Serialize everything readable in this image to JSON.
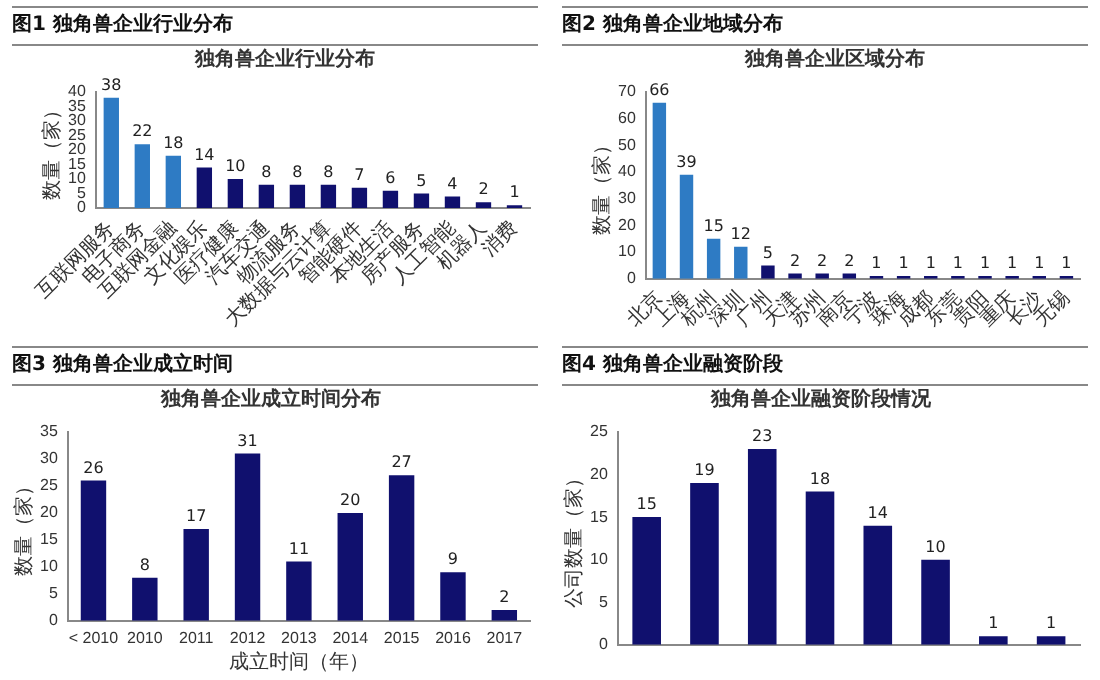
{
  "chart_data": [
    {
      "type": "bar",
      "title": "图1  独角兽企业行业分布",
      "subtitle": "独角兽企业行业分布",
      "ylabel": "数量（家）",
      "categories": [
        "互联网服务",
        "电子商务",
        "互联网金融",
        "文化娱乐",
        "医疗健康",
        "汽车交通",
        "物流服务",
        "大数据与云计算",
        "智能硬件",
        "本地生活",
        "房产服务",
        "人工智能",
        "机器人",
        "消费"
      ],
      "values": [
        38,
        22,
        18,
        14,
        10,
        8,
        8,
        8,
        7,
        6,
        5,
        4,
        2,
        1
      ],
      "colors": [
        "#2e7bc4",
        "#2e7bc4",
        "#2e7bc4",
        "#10106e",
        "#10106e",
        "#10106e",
        "#10106e",
        "#10106e",
        "#10106e",
        "#10106e",
        "#10106e",
        "#10106e",
        "#10106e",
        "#10106e"
      ],
      "ylim": [
        0,
        40
      ],
      "yticks": [
        0,
        5,
        10,
        15,
        20,
        25,
        30,
        35,
        40
      ],
      "data_labels": true,
      "grid": false,
      "legend": false
    },
    {
      "type": "bar",
      "title": "图2  独角兽企业地域分布",
      "subtitle": "独角兽企业区域分布",
      "ylabel": "数量（家）",
      "categories": [
        "北京",
        "上海",
        "杭州",
        "深圳",
        "广州",
        "天津",
        "苏州",
        "南京",
        "宁波",
        "珠海",
        "成都",
        "东莞",
        "贵阳",
        "重庆",
        "长沙",
        "无锡"
      ],
      "values": [
        66,
        39,
        15,
        12,
        5,
        2,
        2,
        2,
        1,
        1,
        1,
        1,
        1,
        1,
        1,
        1
      ],
      "colors": [
        "#2e7bc4",
        "#2e7bc4",
        "#2e7bc4",
        "#2e7bc4",
        "#10106e",
        "#10106e",
        "#10106e",
        "#10106e",
        "#10106e",
        "#10106e",
        "#10106e",
        "#10106e",
        "#10106e",
        "#10106e",
        "#10106e",
        "#10106e"
      ],
      "ylim": [
        0,
        70
      ],
      "yticks": [
        0,
        10,
        20,
        30,
        40,
        50,
        60,
        70
      ],
      "data_labels": true,
      "grid": false,
      "legend": false
    },
    {
      "type": "bar",
      "title": "图3  独角兽企业成立时间",
      "subtitle": "独角兽企业成立时间分布",
      "xlabel": "成立时间（年）",
      "ylabel": "数量（家）",
      "categories": [
        "< 2010",
        "2010",
        "2011",
        "2012",
        "2013",
        "2014",
        "2015",
        "2016",
        "2017"
      ],
      "values": [
        26,
        8,
        17,
        31,
        11,
        20,
        27,
        9,
        2
      ],
      "color": "#10106e",
      "ylim": [
        0,
        35
      ],
      "yticks": [
        0,
        5,
        10,
        15,
        20,
        25,
        30,
        35
      ],
      "data_labels": true,
      "grid": false,
      "legend": false
    },
    {
      "type": "bar",
      "title": "图4  独角兽企业融资阶段",
      "subtitle": "独角兽企业融资阶段情况",
      "ylabel": "公司数量（家）",
      "categories": [
        null,
        null,
        null,
        null,
        null,
        null,
        null,
        null
      ],
      "values": [
        15,
        19,
        23,
        18,
        14,
        10,
        1,
        1
      ],
      "color": "#10106e",
      "ylim": [
        0,
        25
      ],
      "yticks": [
        0,
        5,
        10,
        15,
        20,
        25
      ],
      "data_labels": true,
      "grid": false,
      "legend": false
    }
  ]
}
